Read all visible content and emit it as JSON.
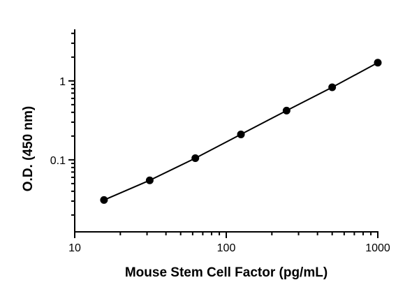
{
  "chart_data": {
    "type": "scatter",
    "title": "",
    "xlabel": "Mouse Stem Cell Factor (pg/mL)",
    "ylabel": "O.D. (450 nm)",
    "xscale": "log",
    "yscale": "log",
    "xlim": [
      10,
      1000
    ],
    "ylim": [
      0.015,
      4.5
    ],
    "x_ticks": [
      {
        "value": 10,
        "label": "10"
      },
      {
        "value": 100,
        "label": "100"
      },
      {
        "value": 1000,
        "label": "1000"
      }
    ],
    "y_ticks": [
      {
        "value": 0.1,
        "label": "0.1"
      },
      {
        "value": 1,
        "label": "1"
      }
    ],
    "grid": false,
    "legend": "none",
    "colors": {
      "line": "#000000",
      "marker": "#000000"
    },
    "series": [
      {
        "x": [
          15.6,
          31.25,
          62.5,
          125,
          250,
          500,
          1000
        ],
        "y": [
          0.031,
          0.055,
          0.105,
          0.21,
          0.42,
          0.83,
          1.7
        ]
      }
    ]
  }
}
